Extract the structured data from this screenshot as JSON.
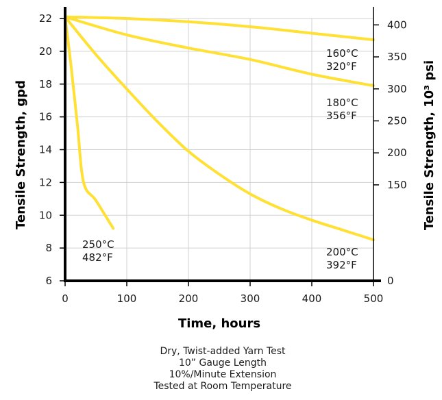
{
  "chart_data": {
    "type": "line",
    "xlabel": "Time, hours",
    "ylabel_left": "Tensile Strength, gpd",
    "ylabel_right": "Tensile Strength, 10³ psi",
    "xlim": [
      0,
      500
    ],
    "ylim_left": [
      6,
      22
    ],
    "ylim_right": [
      0,
      410
    ],
    "x_ticks": [
      "0",
      "100",
      "200",
      "300",
      "400",
      "500"
    ],
    "y_ticks_left": [
      "6",
      "8",
      "10",
      "12",
      "14",
      "16",
      "18",
      "20",
      "22"
    ],
    "y_ticks_right": [
      "0",
      "150",
      "200",
      "250",
      "300",
      "350",
      "400"
    ],
    "grid": true,
    "line_color": "#ffe034",
    "series": [
      {
        "name": "160°C 320°F",
        "label_lines": [
          "160°C",
          "320°F"
        ],
        "x": [
          0,
          100,
          200,
          300,
          400,
          500
        ],
        "y": [
          22.1,
          22.0,
          21.8,
          21.5,
          21.1,
          20.7
        ]
      },
      {
        "name": "180°C 356°F",
        "label_lines": [
          "180°C",
          "356°F"
        ],
        "x": [
          0,
          100,
          200,
          300,
          400,
          500
        ],
        "y": [
          22.1,
          21.0,
          20.2,
          19.5,
          18.6,
          17.9
        ]
      },
      {
        "name": "200°C 392°F",
        "label_lines": [
          "200°C",
          "392°F"
        ],
        "x": [
          0,
          50,
          100,
          150,
          200,
          250,
          300,
          350,
          400,
          450,
          500
        ],
        "y": [
          22.1,
          19.8,
          17.7,
          15.7,
          13.9,
          12.5,
          11.3,
          10.4,
          9.7,
          9.1,
          8.5
        ]
      },
      {
        "name": "250°C 482°F",
        "label_lines": [
          "250°C",
          "482°F"
        ],
        "x": [
          0,
          10,
          20,
          30,
          50,
          78
        ],
        "y": [
          22.1,
          19.0,
          15.5,
          12.0,
          10.9,
          9.2
        ]
      }
    ],
    "footnote": [
      "Dry, Twist-added Yarn Test",
      "10” Gauge Length",
      "10%/Minute Extension",
      "Tested at Room Temperature"
    ]
  }
}
